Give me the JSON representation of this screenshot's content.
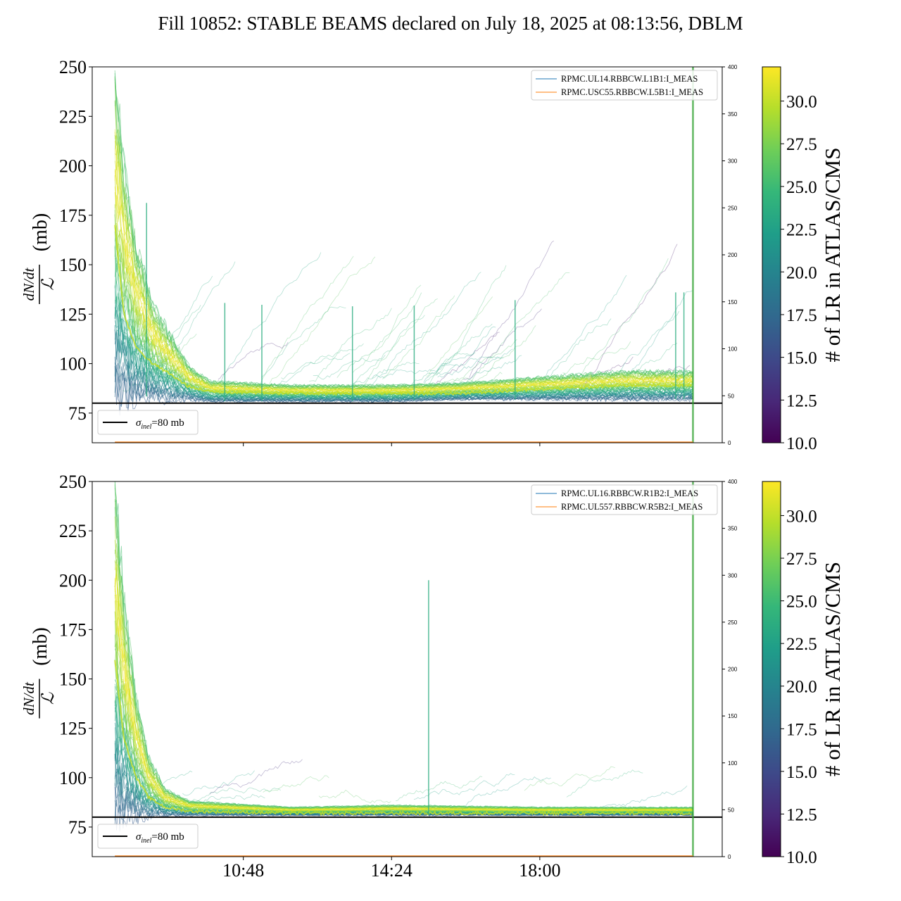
{
  "title": "Fill 10852: STABLE BEAMS declared on July 18, 2025 at 08:13:56, DBLM",
  "colorbar": {
    "label": "# of LR in ATLAS/CMS",
    "range": [
      10.0,
      32.0
    ],
    "ticks": [
      "10.0",
      "12.5",
      "15.0",
      "17.5",
      "20.0",
      "22.5",
      "25.0",
      "27.5",
      "30.0"
    ],
    "colormap": [
      "#440154",
      "#482878",
      "#3e4989",
      "#31688e",
      "#26828e",
      "#1f9e89",
      "#35b779",
      "#6ece58",
      "#b5de2b",
      "#fde725"
    ]
  },
  "chart_data": [
    {
      "type": "line",
      "panel": "top",
      "ylabel_main": "dN/dt",
      "ylabel_den": "ℒ",
      "ylabel_unit": "(mb)",
      "ylim": [
        60,
        250
      ],
      "yticks": [
        75,
        100,
        125,
        150,
        175,
        200,
        225,
        250
      ],
      "y2lim": [
        0,
        400
      ],
      "y2ticks": [
        0,
        50,
        100,
        150,
        200,
        250,
        300,
        350,
        400
      ],
      "xlim_hours": [
        7.13,
        22.43
      ],
      "xticks": [
        {
          "t": 10.8,
          "label": ""
        },
        {
          "t": 14.4,
          "label": ""
        },
        {
          "t": 18.0,
          "label": ""
        }
      ],
      "reference_line": {
        "y": 80,
        "label": "σinel=80 mb",
        "label_main": "σ",
        "label_sub": "inel",
        "label_rest": "=80 mb"
      },
      "legend": [
        "RPMC.UL14.RBBCW.L1B1:I_MEAS",
        "RPMC.USC55.RBBCW.L5B1:I_MEAS"
      ],
      "legend_colors": [
        "#1f77b4",
        "#ff7f0e"
      ],
      "end_marker_t": 21.72,
      "start_t": 7.68,
      "spikes_t": [
        8.45,
        10.35,
        11.25,
        13.45,
        14.95,
        17.4,
        21.3,
        21.5
      ],
      "band": [
        {
          "t": 7.68,
          "low": 86,
          "mid": 170,
          "high": 250
        },
        {
          "t": 7.9,
          "low": 85,
          "mid": 125,
          "high": 200
        },
        {
          "t": 8.2,
          "low": 84,
          "mid": 108,
          "high": 160
        },
        {
          "t": 8.6,
          "low": 83,
          "mid": 100,
          "high": 130
        },
        {
          "t": 9.0,
          "low": 82,
          "mid": 95,
          "high": 115
        },
        {
          "t": 9.5,
          "low": 82,
          "mid": 88,
          "high": 98
        },
        {
          "t": 10.0,
          "low": 81,
          "mid": 86,
          "high": 91
        },
        {
          "t": 12.0,
          "low": 81,
          "mid": 85,
          "high": 89
        },
        {
          "t": 14.4,
          "low": 81,
          "mid": 85,
          "high": 89
        },
        {
          "t": 16.0,
          "low": 82,
          "mid": 85,
          "high": 90
        },
        {
          "t": 18.0,
          "low": 82,
          "mid": 87,
          "high": 93
        },
        {
          "t": 20.0,
          "low": 82,
          "mid": 89,
          "high": 96
        },
        {
          "t": 21.7,
          "low": 82,
          "mid": 89,
          "high": 96
        }
      ],
      "scatter_traces": true
    },
    {
      "type": "line",
      "panel": "bottom",
      "ylabel_main": "dN/dt",
      "ylabel_den": "ℒ",
      "ylabel_unit": "(mb)",
      "ylim": [
        60,
        250
      ],
      "yticks": [
        75,
        100,
        125,
        150,
        175,
        200,
        225,
        250
      ],
      "y2lim": [
        0,
        400
      ],
      "y2ticks": [
        0,
        50,
        100,
        150,
        200,
        250,
        300,
        350,
        400
      ],
      "xlim_hours": [
        7.13,
        22.43
      ],
      "xticks": [
        {
          "t": 10.8,
          "label": "10:48"
        },
        {
          "t": 14.4,
          "label": "14:24"
        },
        {
          "t": 18.0,
          "label": "18:00"
        }
      ],
      "reference_line": {
        "y": 80,
        "label": "σinel=80 mb",
        "label_main": "σ",
        "label_sub": "inel",
        "label_rest": "=80 mb"
      },
      "legend": [
        "RPMC.UL16.RBBCW.R1B2:I_MEAS",
        "RPMC.UL557.RBBCW.R5B2:I_MEAS"
      ],
      "legend_colors": [
        "#1f77b4",
        "#ff7f0e"
      ],
      "end_marker_t": 21.72,
      "start_t": 7.68,
      "spikes_t": [
        15.3
      ],
      "band": [
        {
          "t": 7.68,
          "low": 82,
          "mid": 160,
          "high": 250
        },
        {
          "t": 7.9,
          "low": 82,
          "mid": 120,
          "high": 190
        },
        {
          "t": 8.2,
          "low": 81,
          "mid": 100,
          "high": 140
        },
        {
          "t": 8.5,
          "low": 81,
          "mid": 90,
          "high": 110
        },
        {
          "t": 8.9,
          "low": 81,
          "mid": 85,
          "high": 94
        },
        {
          "t": 9.5,
          "low": 81,
          "mid": 83,
          "high": 88
        },
        {
          "t": 12.0,
          "low": 81,
          "mid": 82,
          "high": 85
        },
        {
          "t": 14.4,
          "low": 81,
          "mid": 82,
          "high": 86
        },
        {
          "t": 18.0,
          "low": 81,
          "mid": 82,
          "high": 85
        },
        {
          "t": 21.7,
          "low": 81,
          "mid": 82,
          "high": 85
        }
      ],
      "scatter_traces": true
    }
  ]
}
